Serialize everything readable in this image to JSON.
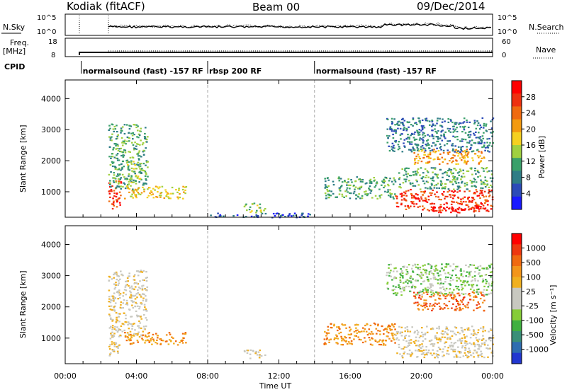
{
  "header": {
    "left_title": "Kodiak (fitACF)",
    "center_title": "Beam 00",
    "right_title": "09/Dec/2014"
  },
  "top_panels": {
    "nsky_label": "N.Sky",
    "nsearch_label": "N.Search",
    "noise_ticks_left": [
      "10^5",
      "10^0"
    ],
    "noise_ticks_right": [
      "10^5",
      "10^0"
    ],
    "freq_label": "Freq.",
    "freq_unit": "[MHz]",
    "freq_ticks": [
      "18",
      "8"
    ],
    "nave_label": "Nave",
    "nave_ticks": [
      "60",
      "0"
    ],
    "cpid_label": "CPID",
    "cpid_segments": [
      {
        "label": "normalsound (fast) -157 RF",
        "start_hour": 0.9,
        "end_hour": 8.0
      },
      {
        "label": "rbsp 200 RF",
        "start_hour": 8.0,
        "end_hour": 14.0
      },
      {
        "label": "normalsound (fast) -157 RF",
        "start_hour": 14.0,
        "end_hour": 24.0
      }
    ]
  },
  "colorbars": {
    "power": {
      "title": "Power [dB]",
      "ticks": [
        "28",
        "24",
        "20",
        "16",
        "12",
        "8",
        "4"
      ],
      "colors": [
        "#1a1aff",
        "#2c4bb8",
        "#2f7d86",
        "#3aa06a",
        "#a0d040",
        "#f5d020",
        "#f39a10",
        "#f06a10",
        "#ee3010",
        "#ff0000"
      ]
    },
    "velocity": {
      "title": "Velocity [m s⁻¹]",
      "ticks": [
        "1000",
        "500",
        "100",
        "25",
        "-25",
        "-100",
        "-500",
        "-1000"
      ],
      "colors": [
        "#2237d0",
        "#2f6db0",
        "#3a8f78",
        "#40b040",
        "#86cc38",
        "#c8c8c0",
        "#c8c8c0",
        "#f0b020",
        "#f3951a",
        "#f06a10",
        "#ee3810",
        "#ff0000"
      ]
    }
  },
  "chart_data": {
    "type": "heatmap",
    "xlabel": "Time UT",
    "x_ticks": [
      "00:00",
      "04:00",
      "08:00",
      "12:00",
      "16:00",
      "20:00",
      "00:00"
    ],
    "xlim_hours": [
      0,
      24
    ],
    "panels": [
      {
        "name": "power",
        "ylabel": "Slant Range [km]",
        "y_ticks": [
          "4000",
          "3000",
          "2000",
          "1000"
        ],
        "ylim_km": [
          180,
          4600
        ],
        "scale": "dB",
        "echo_regions": [
          {
            "t0": 2.4,
            "t1": 3.1,
            "r0": 450,
            "r1": 1400,
            "level": 8
          },
          {
            "t0": 2.4,
            "t1": 4.6,
            "r0": 1100,
            "r1": 3200,
            "level": 3
          },
          {
            "t0": 3.3,
            "t1": 6.8,
            "r0": 800,
            "r1": 1200,
            "level": 5
          },
          {
            "t0": 3.4,
            "t1": 4.2,
            "r0": 1200,
            "r1": 2000,
            "level": 4
          },
          {
            "t0": 10.0,
            "t1": 11.2,
            "r0": 350,
            "r1": 650,
            "level": 4
          },
          {
            "t0": 8.0,
            "t1": 14.0,
            "r0": 190,
            "r1": 330,
            "level": 1
          },
          {
            "t0": 14.5,
            "t1": 18.5,
            "r0": 800,
            "r1": 1500,
            "level": 3
          },
          {
            "t0": 18.5,
            "t1": 24.0,
            "r0": 400,
            "r1": 1100,
            "level": 8
          },
          {
            "t0": 20.5,
            "t1": 23.8,
            "r0": 350,
            "r1": 550,
            "level": 9
          },
          {
            "t0": 19.5,
            "t1": 23.5,
            "r0": 1900,
            "r1": 2400,
            "level": 6
          },
          {
            "t0": 18.7,
            "t1": 24.0,
            "r0": 1100,
            "r1": 1800,
            "level": 3
          },
          {
            "t0": 18.0,
            "t1": 24.0,
            "r0": 2300,
            "r1": 3400,
            "level": 2
          }
        ]
      },
      {
        "name": "velocity",
        "ylabel": "Slant Range [km]",
        "y_ticks": [
          "4000",
          "3000",
          "2000",
          "1000"
        ],
        "ylim_km": [
          180,
          4600
        ],
        "scale": "m/s",
        "echo_regions": [
          {
            "t0": 2.4,
            "t1": 3.0,
            "r0": 450,
            "r1": 1400,
            "level": 6
          },
          {
            "t0": 2.4,
            "t1": 4.6,
            "r0": 1100,
            "r1": 3200,
            "level": 6
          },
          {
            "t0": 3.3,
            "t1": 6.8,
            "r0": 800,
            "r1": 1200,
            "level": 8
          },
          {
            "t0": 10.0,
            "t1": 11.2,
            "r0": 350,
            "r1": 650,
            "level": 6
          },
          {
            "t0": 14.5,
            "t1": 18.5,
            "r0": 800,
            "r1": 1500,
            "level": 8
          },
          {
            "t0": 18.5,
            "t1": 24.0,
            "r0": 400,
            "r1": 1400,
            "level": 6
          },
          {
            "t0": 19.5,
            "t1": 23.5,
            "r0": 1900,
            "r1": 2500,
            "level": 9
          },
          {
            "t0": 18.0,
            "t1": 24.0,
            "r0": 2400,
            "r1": 3400,
            "level": 4
          }
        ]
      }
    ]
  }
}
